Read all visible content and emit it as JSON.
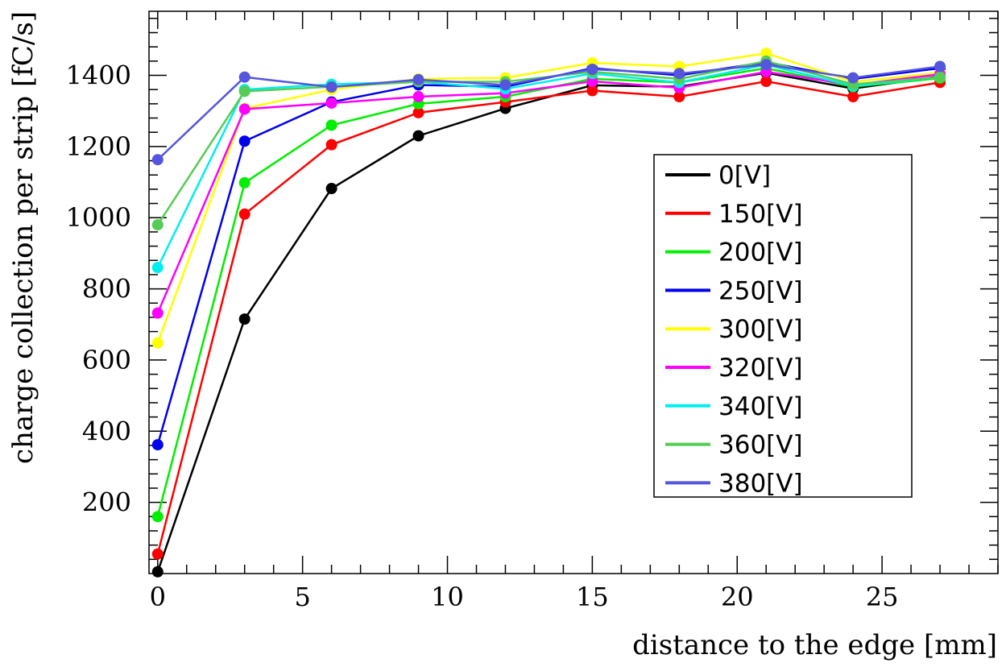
{
  "chart_data": {
    "type": "line",
    "title": "",
    "xlabel": "distance to the edge [mm]",
    "ylabel": "charge collection per strip [fC/s]",
    "xlim": [
      -0.3,
      29.0
    ],
    "ylim": [
      0,
      1580
    ],
    "xticks": [
      0,
      5,
      10,
      15,
      20,
      25
    ],
    "yticks": [
      200,
      400,
      600,
      800,
      1000,
      1200,
      1400
    ],
    "x": [
      0,
      3,
      6,
      9,
      12,
      15,
      18,
      21,
      24,
      27
    ],
    "legend_position": "right-center",
    "series": [
      {
        "name": "0[V]",
        "color": "#000000",
        "values": [
          5,
          715,
          1082,
          1230,
          1307,
          1372,
          1368,
          1407,
          1363,
          1397
        ]
      },
      {
        "name": "150[V]",
        "color": "#ff0000",
        "values": [
          55,
          1010,
          1205,
          1295,
          1325,
          1357,
          1340,
          1383,
          1340,
          1380
        ]
      },
      {
        "name": "200[V]",
        "color": "#00ee00",
        "values": [
          160,
          1098,
          1260,
          1320,
          1340,
          1390,
          1380,
          1420,
          1368,
          1392
        ]
      },
      {
        "name": "250[V]",
        "color": "#0000ee",
        "values": [
          362,
          1215,
          1325,
          1373,
          1368,
          1420,
          1400,
          1437,
          1390,
          1420
        ]
      },
      {
        "name": "300[V]",
        "color": "#ffff00",
        "values": [
          648,
          1307,
          1360,
          1390,
          1393,
          1435,
          1425,
          1462,
          1382,
          1407
        ]
      },
      {
        "name": "320[V]",
        "color": "#ff00ff",
        "values": [
          732,
          1305,
          1322,
          1340,
          1350,
          1383,
          1365,
          1410,
          1373,
          1403
        ]
      },
      {
        "name": "340[V]",
        "color": "#00eeee",
        "values": [
          860,
          1360,
          1375,
          1382,
          1362,
          1405,
          1380,
          1430,
          1370,
          1395
        ]
      },
      {
        "name": "360[V]",
        "color": "#55cc55",
        "values": [
          980,
          1355,
          1368,
          1382,
          1382,
          1410,
          1390,
          1440,
          1375,
          1395
        ]
      },
      {
        "name": "380[V]",
        "color": "#5555dd",
        "values": [
          1163,
          1395,
          1367,
          1388,
          1373,
          1417,
          1405,
          1430,
          1393,
          1425
        ]
      }
    ]
  }
}
